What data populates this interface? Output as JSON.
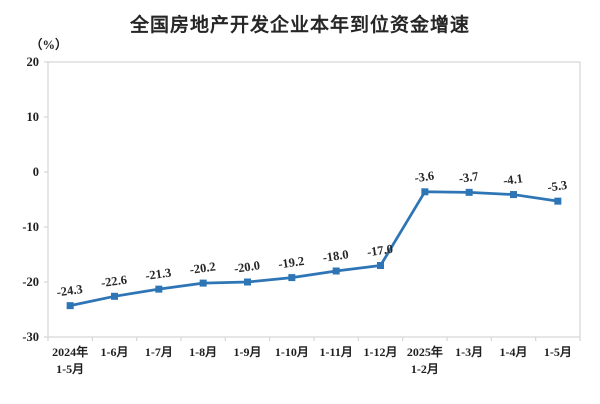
{
  "chart_data": {
    "type": "line",
    "title": "全国房地产开发企业本年到位资金增速",
    "unit_label": "（%）",
    "categories": [
      [
        "2024年",
        "1-5月"
      ],
      "1-6月",
      "1-7月",
      "1-8月",
      "1-9月",
      "1-10月",
      "1-11月",
      "1-12月",
      [
        "2025年",
        "1-2月"
      ],
      "1-3月",
      "1-4月",
      "1-5月"
    ],
    "values": [
      -24.3,
      -22.6,
      -21.3,
      -20.2,
      -20.0,
      -19.2,
      -18.0,
      -17.0,
      -3.6,
      -3.7,
      -4.1,
      -5.3
    ],
    "data_labels": [
      "-24.3",
      "-22.6",
      "-21.3",
      "-20.2",
      "-20.0",
      "-19.2",
      "-18.0",
      "-17.0",
      "-3.6",
      "-3.7",
      "-4.1",
      "-5.3"
    ],
    "ylim": [
      -30,
      20
    ],
    "yticks": [
      20,
      10,
      0,
      -10,
      -20,
      -30
    ],
    "line_color": "#2E75B6",
    "axis_color": "#d6d6d6",
    "grid": false,
    "legend": "none"
  }
}
